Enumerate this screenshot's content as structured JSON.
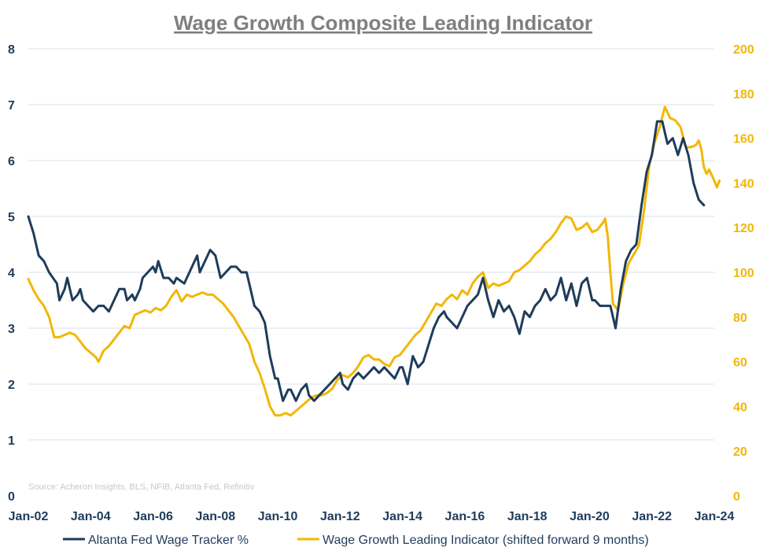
{
  "chart_data": {
    "type": "line",
    "title": "Wage Growth Composite Leading Indicator",
    "source": "Source: Acheron Insights, BLS, NFIB, Atlanta Fed, Refinitiv",
    "x_tick_labels": [
      "Jan-02",
      "Jan-04",
      "Jan-06",
      "Jan-08",
      "Jan-10",
      "Jan-12",
      "Jan-14",
      "Jan-16",
      "Jan-18",
      "Jan-20",
      "Jan-22",
      "Jan-24"
    ],
    "left_axis": {
      "ylim": [
        0,
        8
      ],
      "ticks": [
        "0",
        "1",
        "2",
        "3",
        "4",
        "5",
        "6",
        "7",
        "8"
      ]
    },
    "right_axis": {
      "ylim": [
        0,
        200
      ],
      "ticks": [
        "0",
        "20",
        "40",
        "60",
        "80",
        "100",
        "120",
        "140",
        "160",
        "180",
        "200"
      ]
    },
    "grid": "horizontal",
    "legend_position": "bottom",
    "series": [
      {
        "name": "Altanta Fed Wage Tracker %",
        "axis": "left",
        "color": "#1f3c5a",
        "points": [
          [
            "2002-01",
            5.0
          ],
          [
            "2002-03",
            4.7
          ],
          [
            "2002-05",
            4.3
          ],
          [
            "2002-07",
            4.2
          ],
          [
            "2002-09",
            4.0
          ],
          [
            "2002-12",
            3.8
          ],
          [
            "2003-01",
            3.5
          ],
          [
            "2003-03",
            3.7
          ],
          [
            "2003-04",
            3.9
          ],
          [
            "2003-06",
            3.5
          ],
          [
            "2003-08",
            3.6
          ],
          [
            "2003-09",
            3.7
          ],
          [
            "2003-10",
            3.5
          ],
          [
            "2003-12",
            3.4
          ],
          [
            "2004-02",
            3.3
          ],
          [
            "2004-04",
            3.4
          ],
          [
            "2004-06",
            3.4
          ],
          [
            "2004-08",
            3.3
          ],
          [
            "2004-10",
            3.5
          ],
          [
            "2004-12",
            3.7
          ],
          [
            "2005-02",
            3.7
          ],
          [
            "2005-03",
            3.5
          ],
          [
            "2005-05",
            3.6
          ],
          [
            "2005-06",
            3.5
          ],
          [
            "2005-08",
            3.7
          ],
          [
            "2005-09",
            3.9
          ],
          [
            "2005-11",
            4.0
          ],
          [
            "2006-01",
            4.1
          ],
          [
            "2006-02",
            4.0
          ],
          [
            "2006-03",
            4.2
          ],
          [
            "2006-05",
            3.9
          ],
          [
            "2006-07",
            3.9
          ],
          [
            "2006-09",
            3.8
          ],
          [
            "2006-10",
            3.9
          ],
          [
            "2007-01",
            3.8
          ],
          [
            "2007-03",
            4.0
          ],
          [
            "2007-05",
            4.2
          ],
          [
            "2007-06",
            4.3
          ],
          [
            "2007-07",
            4.0
          ],
          [
            "2007-09",
            4.2
          ],
          [
            "2007-11",
            4.4
          ],
          [
            "2008-01",
            4.3
          ],
          [
            "2008-03",
            3.9
          ],
          [
            "2008-05",
            4.0
          ],
          [
            "2008-07",
            4.1
          ],
          [
            "2008-09",
            4.1
          ],
          [
            "2008-11",
            4.0
          ],
          [
            "2009-01",
            4.0
          ],
          [
            "2009-02",
            3.8
          ],
          [
            "2009-04",
            3.4
          ],
          [
            "2009-06",
            3.3
          ],
          [
            "2009-08",
            3.1
          ],
          [
            "2009-10",
            2.5
          ],
          [
            "2009-12",
            2.1
          ],
          [
            "2010-01",
            2.1
          ],
          [
            "2010-03",
            1.7
          ],
          [
            "2010-05",
            1.9
          ],
          [
            "2010-06",
            1.9
          ],
          [
            "2010-08",
            1.7
          ],
          [
            "2010-10",
            1.9
          ],
          [
            "2010-12",
            2.0
          ],
          [
            "2011-01",
            1.8
          ],
          [
            "2011-03",
            1.7
          ],
          [
            "2011-05",
            1.8
          ],
          [
            "2011-07",
            1.9
          ],
          [
            "2011-09",
            2.0
          ],
          [
            "2011-11",
            2.1
          ],
          [
            "2012-01",
            2.2
          ],
          [
            "2012-02",
            2.0
          ],
          [
            "2012-04",
            1.9
          ],
          [
            "2012-06",
            2.1
          ],
          [
            "2012-08",
            2.2
          ],
          [
            "2012-10",
            2.1
          ],
          [
            "2012-12",
            2.2
          ],
          [
            "2013-02",
            2.3
          ],
          [
            "2013-04",
            2.2
          ],
          [
            "2013-06",
            2.3
          ],
          [
            "2013-08",
            2.2
          ],
          [
            "2013-10",
            2.1
          ],
          [
            "2013-12",
            2.3
          ],
          [
            "2014-01",
            2.3
          ],
          [
            "2014-03",
            2.0
          ],
          [
            "2014-05",
            2.5
          ],
          [
            "2014-07",
            2.3
          ],
          [
            "2014-09",
            2.4
          ],
          [
            "2014-11",
            2.7
          ],
          [
            "2015-01",
            3.0
          ],
          [
            "2015-03",
            3.2
          ],
          [
            "2015-05",
            3.3
          ],
          [
            "2015-06",
            3.2
          ],
          [
            "2015-08",
            3.1
          ],
          [
            "2015-10",
            3.0
          ],
          [
            "2015-12",
            3.2
          ],
          [
            "2016-02",
            3.4
          ],
          [
            "2016-04",
            3.5
          ],
          [
            "2016-06",
            3.6
          ],
          [
            "2016-08",
            3.9
          ],
          [
            "2016-10",
            3.5
          ],
          [
            "2016-12",
            3.2
          ],
          [
            "2017-02",
            3.5
          ],
          [
            "2017-04",
            3.3
          ],
          [
            "2017-06",
            3.4
          ],
          [
            "2017-08",
            3.2
          ],
          [
            "2017-10",
            2.9
          ],
          [
            "2017-12",
            3.3
          ],
          [
            "2018-02",
            3.2
          ],
          [
            "2018-04",
            3.4
          ],
          [
            "2018-06",
            3.5
          ],
          [
            "2018-08",
            3.7
          ],
          [
            "2018-10",
            3.5
          ],
          [
            "2018-12",
            3.6
          ],
          [
            "2019-02",
            3.9
          ],
          [
            "2019-04",
            3.5
          ],
          [
            "2019-06",
            3.8
          ],
          [
            "2019-08",
            3.4
          ],
          [
            "2019-10",
            3.8
          ],
          [
            "2019-12",
            3.9
          ],
          [
            "2020-02",
            3.5
          ],
          [
            "2020-03",
            3.5
          ],
          [
            "2020-05",
            3.4
          ],
          [
            "2020-07",
            3.4
          ],
          [
            "2020-09",
            3.4
          ],
          [
            "2020-11",
            3.0
          ],
          [
            "2021-01",
            3.7
          ],
          [
            "2021-03",
            4.2
          ],
          [
            "2021-05",
            4.4
          ],
          [
            "2021-07",
            4.5
          ],
          [
            "2021-09",
            5.2
          ],
          [
            "2021-11",
            5.8
          ],
          [
            "2022-01",
            6.1
          ],
          [
            "2022-03",
            6.7
          ],
          [
            "2022-05",
            6.7
          ],
          [
            "2022-07",
            6.3
          ],
          [
            "2022-09",
            6.4
          ],
          [
            "2022-11",
            6.1
          ],
          [
            "2023-01",
            6.4
          ],
          [
            "2023-03",
            6.1
          ],
          [
            "2023-05",
            5.6
          ],
          [
            "2023-07",
            5.3
          ],
          [
            "2023-09",
            5.2
          ]
        ]
      },
      {
        "name": "Wage Growth Leading Indicator (shifted forward 9 months)",
        "axis": "right",
        "color": "#f2b705",
        "points": [
          [
            "2002-01",
            97
          ],
          [
            "2002-03",
            92
          ],
          [
            "2002-05",
            88
          ],
          [
            "2002-07",
            85
          ],
          [
            "2002-09",
            80
          ],
          [
            "2002-11",
            71
          ],
          [
            "2003-01",
            71
          ],
          [
            "2003-03",
            72
          ],
          [
            "2003-05",
            73
          ],
          [
            "2003-07",
            72
          ],
          [
            "2003-09",
            69
          ],
          [
            "2003-11",
            66
          ],
          [
            "2004-01",
            64
          ],
          [
            "2004-03",
            62
          ],
          [
            "2004-04",
            60
          ],
          [
            "2004-06",
            65
          ],
          [
            "2004-08",
            67
          ],
          [
            "2004-10",
            70
          ],
          [
            "2004-12",
            73
          ],
          [
            "2005-02",
            76
          ],
          [
            "2005-04",
            75
          ],
          [
            "2005-06",
            81
          ],
          [
            "2005-08",
            82
          ],
          [
            "2005-10",
            83
          ],
          [
            "2005-12",
            82
          ],
          [
            "2006-02",
            84
          ],
          [
            "2006-04",
            83
          ],
          [
            "2006-06",
            85
          ],
          [
            "2006-08",
            89
          ],
          [
            "2006-10",
            92
          ],
          [
            "2006-12",
            87
          ],
          [
            "2007-02",
            90
          ],
          [
            "2007-04",
            89
          ],
          [
            "2007-06",
            90
          ],
          [
            "2007-08",
            91
          ],
          [
            "2007-10",
            90
          ],
          [
            "2007-12",
            90
          ],
          [
            "2008-02",
            88
          ],
          [
            "2008-04",
            86
          ],
          [
            "2008-06",
            83
          ],
          [
            "2008-08",
            80
          ],
          [
            "2008-10",
            76
          ],
          [
            "2008-12",
            72
          ],
          [
            "2009-02",
            68
          ],
          [
            "2009-04",
            60
          ],
          [
            "2009-06",
            55
          ],
          [
            "2009-08",
            48
          ],
          [
            "2009-10",
            40
          ],
          [
            "2009-12",
            36
          ],
          [
            "2010-02",
            36
          ],
          [
            "2010-04",
            37
          ],
          [
            "2010-06",
            36
          ],
          [
            "2010-08",
            38
          ],
          [
            "2010-10",
            40
          ],
          [
            "2010-12",
            42
          ],
          [
            "2011-02",
            44
          ],
          [
            "2011-04",
            45
          ],
          [
            "2011-06",
            45
          ],
          [
            "2011-08",
            46
          ],
          [
            "2011-10",
            48
          ],
          [
            "2011-12",
            52
          ],
          [
            "2012-02",
            54
          ],
          [
            "2012-04",
            53
          ],
          [
            "2012-06",
            55
          ],
          [
            "2012-08",
            58
          ],
          [
            "2012-10",
            62
          ],
          [
            "2012-12",
            63
          ],
          [
            "2013-02",
            61
          ],
          [
            "2013-04",
            61
          ],
          [
            "2013-06",
            59
          ],
          [
            "2013-08",
            58
          ],
          [
            "2013-10",
            62
          ],
          [
            "2013-12",
            63
          ],
          [
            "2014-02",
            66
          ],
          [
            "2014-04",
            69
          ],
          [
            "2014-06",
            72
          ],
          [
            "2014-08",
            74
          ],
          [
            "2014-10",
            78
          ],
          [
            "2014-12",
            82
          ],
          [
            "2015-02",
            86
          ],
          [
            "2015-04",
            85
          ],
          [
            "2015-06",
            88
          ],
          [
            "2015-08",
            90
          ],
          [
            "2015-10",
            88
          ],
          [
            "2015-12",
            92
          ],
          [
            "2016-02",
            90
          ],
          [
            "2016-04",
            95
          ],
          [
            "2016-06",
            98
          ],
          [
            "2016-08",
            100
          ],
          [
            "2016-10",
            93
          ],
          [
            "2016-12",
            95
          ],
          [
            "2017-02",
            94
          ],
          [
            "2017-04",
            95
          ],
          [
            "2017-06",
            96
          ],
          [
            "2017-08",
            100
          ],
          [
            "2017-10",
            101
          ],
          [
            "2017-12",
            103
          ],
          [
            "2018-02",
            105
          ],
          [
            "2018-04",
            108
          ],
          [
            "2018-06",
            110
          ],
          [
            "2018-08",
            113
          ],
          [
            "2018-10",
            115
          ],
          [
            "2018-12",
            118
          ],
          [
            "2019-02",
            122
          ],
          [
            "2019-04",
            125
          ],
          [
            "2019-06",
            124
          ],
          [
            "2019-08",
            119
          ],
          [
            "2019-10",
            120
          ],
          [
            "2019-12",
            122
          ],
          [
            "2020-02",
            118
          ],
          [
            "2020-04",
            119
          ],
          [
            "2020-06",
            122
          ],
          [
            "2020-07",
            124
          ],
          [
            "2020-08",
            116
          ],
          [
            "2020-09",
            100
          ],
          [
            "2020-10",
            86
          ],
          [
            "2020-12",
            83
          ],
          [
            "2021-02",
            95
          ],
          [
            "2021-04",
            104
          ],
          [
            "2021-06",
            108
          ],
          [
            "2021-08",
            112
          ],
          [
            "2021-10",
            128
          ],
          [
            "2021-12",
            148
          ],
          [
            "2022-02",
            158
          ],
          [
            "2022-04",
            165
          ],
          [
            "2022-06",
            174
          ],
          [
            "2022-08",
            169
          ],
          [
            "2022-10",
            168
          ],
          [
            "2022-12",
            165
          ],
          [
            "2023-02",
            156
          ],
          [
            "2023-04",
            156
          ],
          [
            "2023-06",
            157
          ],
          [
            "2023-07",
            159
          ],
          [
            "2023-08",
            155
          ],
          [
            "2023-09",
            147
          ],
          [
            "2023-10",
            144
          ],
          [
            "2023-11",
            146
          ],
          [
            "2024-01",
            141
          ],
          [
            "2024-02",
            138
          ],
          [
            "2024-03",
            141
          ]
        ]
      }
    ]
  }
}
